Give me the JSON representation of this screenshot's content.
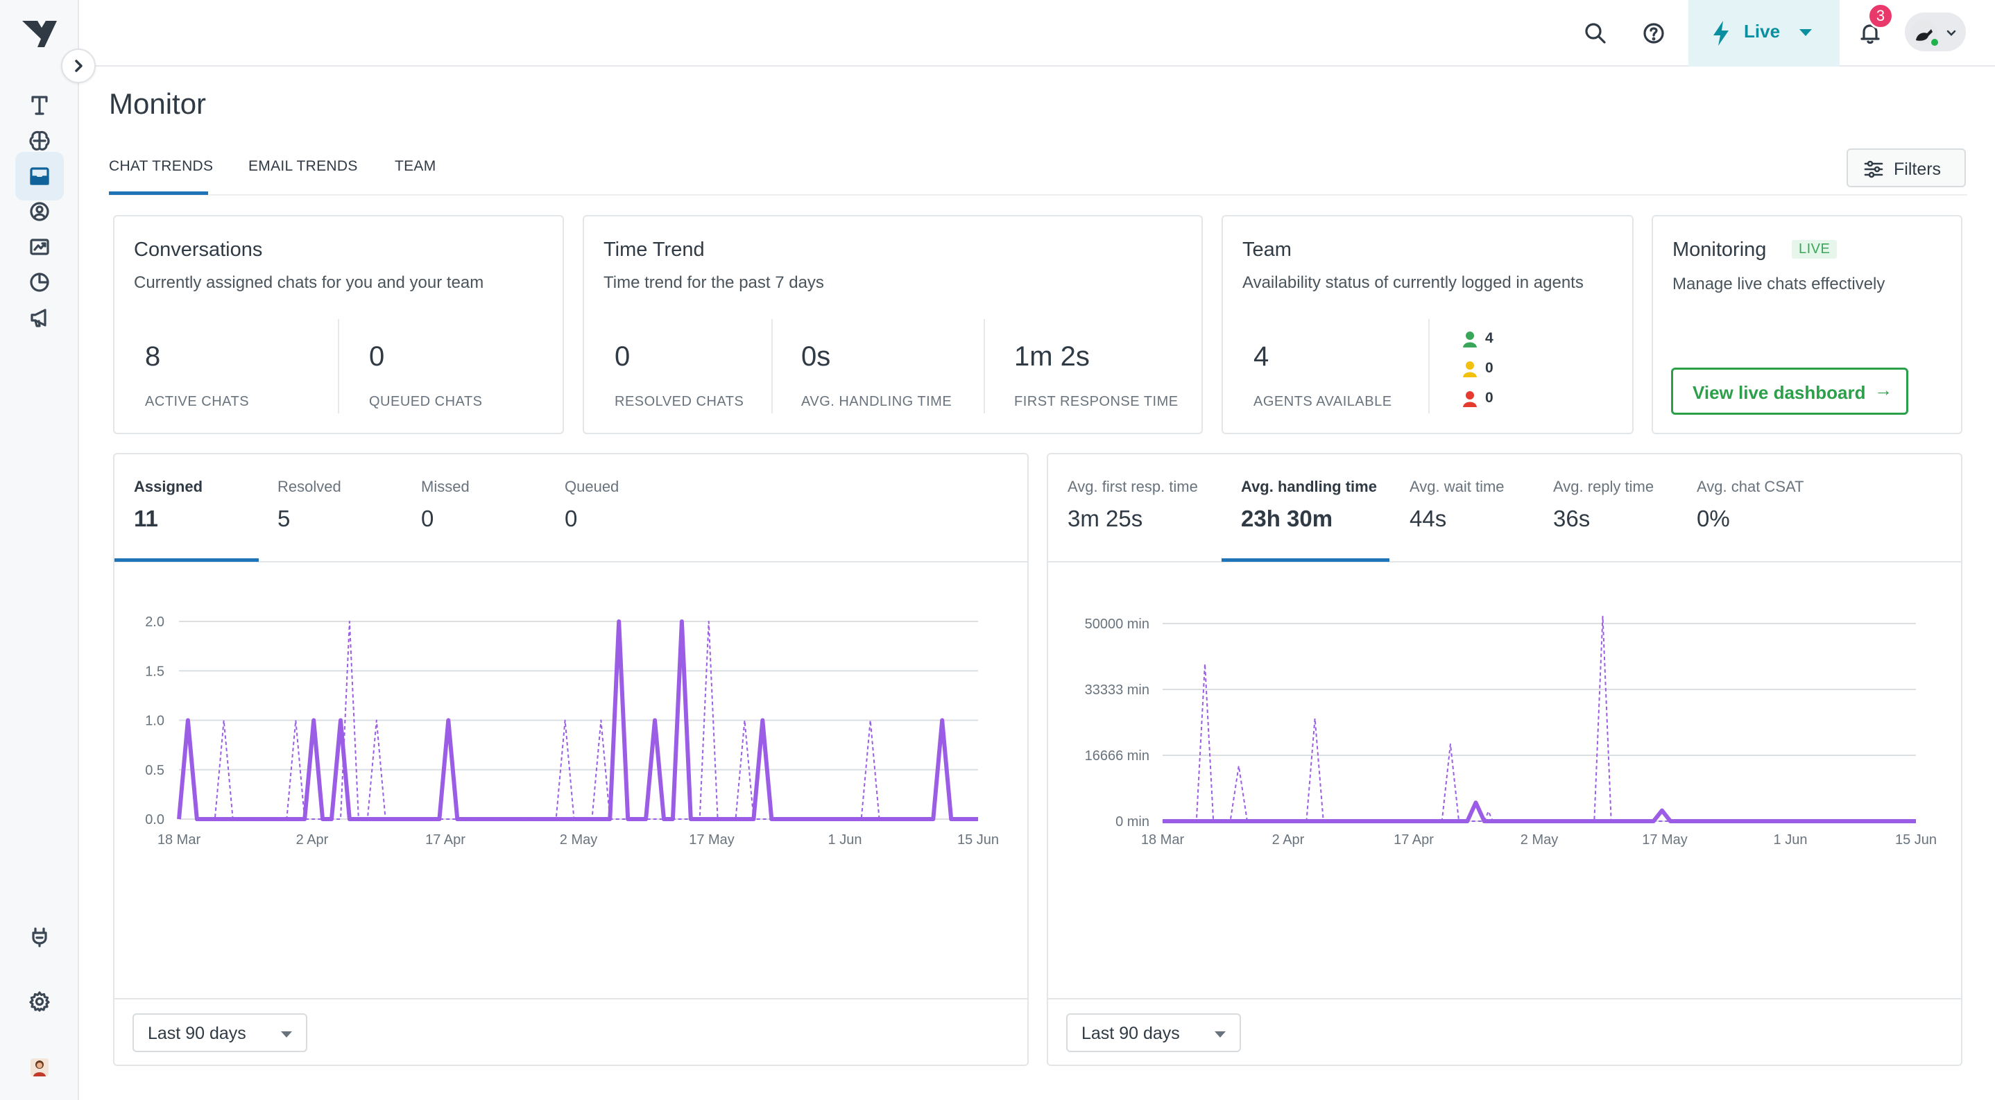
{
  "topbar": {
    "live_label": "Live",
    "notification_count": "3"
  },
  "page": {
    "title": "Monitor",
    "tabs": [
      "CHAT TRENDS",
      "EMAIL TRENDS",
      "TEAM"
    ],
    "active_tab": "CHAT TRENDS",
    "filters_label": "Filters"
  },
  "cards": {
    "conversations": {
      "title": "Conversations",
      "subtitle": "Currently assigned chats for you and your team",
      "metrics": [
        {
          "value": "8",
          "label": "ACTIVE CHATS"
        },
        {
          "value": "0",
          "label": "QUEUED CHATS"
        }
      ]
    },
    "time_trend": {
      "title": "Time Trend",
      "subtitle": "Time trend for the past 7 days",
      "metrics": [
        {
          "value": "0",
          "label": "RESOLVED CHATS"
        },
        {
          "value": "0s",
          "label": "AVG. HANDLING TIME"
        },
        {
          "value": "1m 2s",
          "label": "FIRST RESPONSE TIME"
        }
      ]
    },
    "team": {
      "title": "Team",
      "subtitle": "Availability status of currently logged in agents",
      "metric": {
        "value": "4",
        "label": "AGENTS AVAILABLE"
      },
      "statuses": [
        {
          "color": "#3aa65a",
          "count": "4"
        },
        {
          "color": "#f2c10f",
          "count": "0"
        },
        {
          "color": "#e63a2e",
          "count": "0"
        }
      ]
    },
    "monitoring": {
      "title": "Monitoring",
      "live_tag": "LIVE",
      "subtitle": "Manage live chats effectively",
      "button_label": "View live dashboard",
      "button_arrow": "→"
    }
  },
  "left_panel": {
    "tabs": [
      {
        "label": "Assigned",
        "value": "11"
      },
      {
        "label": "Resolved",
        "value": "5"
      },
      {
        "label": "Missed",
        "value": "0"
      },
      {
        "label": "Queued",
        "value": "0"
      }
    ],
    "active_tab": "Assigned",
    "range_label": "Last 90 days"
  },
  "right_panel": {
    "tabs": [
      {
        "label": "Avg. first resp. time",
        "value": "3m 25s"
      },
      {
        "label": "Avg. handling time",
        "value": "23h 30m"
      },
      {
        "label": "Avg. wait time",
        "value": "44s"
      },
      {
        "label": "Avg. reply time",
        "value": "36s"
      },
      {
        "label": "Avg. chat CSAT",
        "value": "0%"
      }
    ],
    "active_tab": "Avg. handling time",
    "range_label": "Last 90 days"
  },
  "chart_data": [
    {
      "type": "line",
      "x_ticks": [
        "18 Mar",
        "2 Apr",
        "17 Apr",
        "2 May",
        "17 May",
        "1 Jun",
        "15 Jun"
      ],
      "y_ticks": [
        "0.0",
        "0.5",
        "1.0",
        "1.5",
        "2.0"
      ],
      "ylim": [
        0,
        2
      ],
      "day_range": [
        0,
        89
      ],
      "series": [
        {
          "style": "solid",
          "color": "#9b5de5",
          "points": [
            [
              0,
              0
            ],
            [
              1,
              1
            ],
            [
              2,
              0
            ],
            [
              14,
              0
            ],
            [
              15,
              1
            ],
            [
              16,
              0
            ],
            [
              17,
              0
            ],
            [
              18,
              1
            ],
            [
              19,
              0
            ],
            [
              29,
              0
            ],
            [
              30,
              1
            ],
            [
              31,
              0
            ],
            [
              48,
              0
            ],
            [
              49,
              2
            ],
            [
              50,
              0
            ],
            [
              52,
              0
            ],
            [
              53,
              1
            ],
            [
              54,
              0
            ],
            [
              55,
              0
            ],
            [
              56,
              2
            ],
            [
              57,
              0
            ],
            [
              64,
              0
            ],
            [
              65,
              1
            ],
            [
              66,
              0
            ],
            [
              84,
              0
            ],
            [
              85,
              1
            ],
            [
              86,
              0
            ],
            [
              89,
              0
            ]
          ]
        },
        {
          "style": "dashed",
          "color": "#9b5de5",
          "points": [
            [
              0,
              0
            ],
            [
              1,
              1
            ],
            [
              2,
              0
            ],
            [
              4,
              0
            ],
            [
              5,
              1
            ],
            [
              6,
              0
            ],
            [
              12,
              0
            ],
            [
              13,
              1
            ],
            [
              14,
              0
            ],
            [
              18,
              0
            ],
            [
              19,
              2
            ],
            [
              20,
              0
            ],
            [
              21,
              0
            ],
            [
              22,
              1
            ],
            [
              23,
              0
            ],
            [
              42,
              0
            ],
            [
              43,
              1
            ],
            [
              44,
              0
            ],
            [
              46,
              0
            ],
            [
              47,
              1
            ],
            [
              48,
              0
            ],
            [
              58,
              0
            ],
            [
              59,
              2
            ],
            [
              60,
              0
            ],
            [
              62,
              0
            ],
            [
              63,
              1
            ],
            [
              64,
              0
            ],
            [
              76,
              0
            ],
            [
              77,
              1
            ],
            [
              78,
              0
            ],
            [
              84,
              0
            ],
            [
              85,
              1
            ],
            [
              86,
              0
            ],
            [
              89,
              0
            ]
          ]
        }
      ]
    },
    {
      "type": "line",
      "x_ticks": [
        "18 Mar",
        "2 Apr",
        "17 Apr",
        "2 May",
        "17 May",
        "1 Jun",
        "15 Jun"
      ],
      "y_ticks": [
        "0 min",
        "16666 min",
        "33333 min",
        "50000 min"
      ],
      "ylim": [
        0,
        50000
      ],
      "day_range": [
        0,
        89
      ],
      "series": [
        {
          "style": "solid",
          "color": "#9b5de5",
          "points": [
            [
              0,
              0
            ],
            [
              36,
              0
            ],
            [
              37,
              4700
            ],
            [
              38,
              0
            ],
            [
              58,
              0
            ],
            [
              59,
              2700
            ],
            [
              60,
              0
            ],
            [
              89,
              0
            ]
          ]
        },
        {
          "style": "dashed",
          "color": "#9b5de5",
          "points": [
            [
              0,
              0
            ],
            [
              4,
              0
            ],
            [
              5,
              39800
            ],
            [
              6,
              0
            ],
            [
              8,
              0
            ],
            [
              9,
              14000
            ],
            [
              10,
              0
            ],
            [
              17,
              0
            ],
            [
              18,
              26000
            ],
            [
              19,
              0
            ],
            [
              33,
              0
            ],
            [
              34,
              19500
            ],
            [
              35,
              0
            ],
            [
              38,
              0
            ],
            [
              38.5,
              2500
            ],
            [
              39,
              0
            ],
            [
              51,
              0
            ],
            [
              52,
              51800
            ],
            [
              53,
              0
            ],
            [
              89,
              0
            ]
          ]
        }
      ]
    }
  ]
}
